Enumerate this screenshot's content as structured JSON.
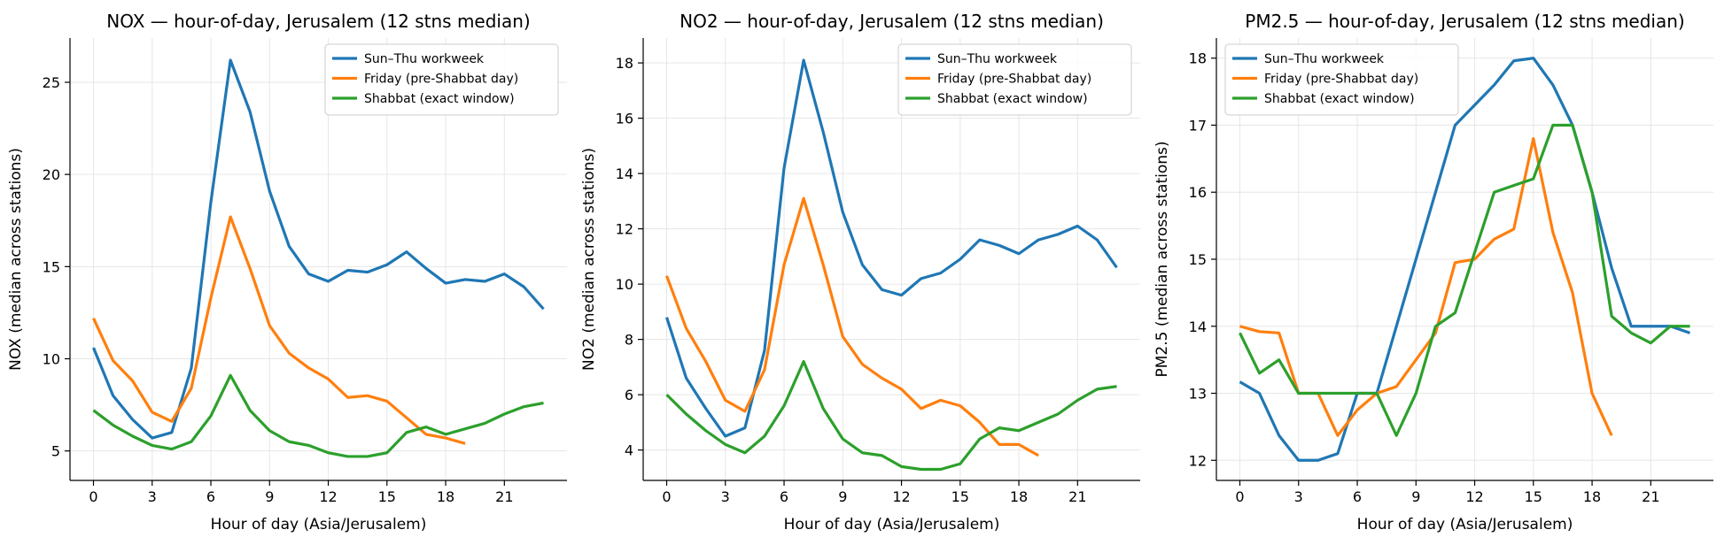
{
  "chart_data": [
    {
      "type": "line",
      "title": "NOX — hour-of-day, Jerusalem (12 stns median)",
      "xlabel": "Hour of day (Asia/Jerusalem)",
      "ylabel": "NOX (median across stations)",
      "xlim": [
        -1.2,
        24.2
      ],
      "ylim": [
        3.4,
        27.4
      ],
      "xticks": [
        0,
        3,
        6,
        9,
        12,
        15,
        18,
        21
      ],
      "yticks": [
        5,
        10,
        15,
        20,
        25
      ],
      "grid": true,
      "legend": "top-right",
      "series": [
        {
          "name": "Sun–Thu workweek",
          "color": "#1f77b4",
          "x": [
            0,
            1,
            2,
            3,
            4,
            5,
            6,
            7,
            8,
            9,
            10,
            11,
            12,
            13,
            14,
            15,
            16,
            17,
            18,
            19,
            20,
            21,
            22,
            23
          ],
          "values": [
            10.6,
            8.0,
            6.7,
            5.7,
            6.0,
            9.5,
            18.5,
            26.2,
            23.4,
            19.1,
            16.1,
            14.6,
            14.2,
            14.8,
            14.7,
            15.1,
            15.8,
            14.9,
            14.1,
            14.3,
            14.2,
            14.6,
            13.9,
            12.7
          ]
        },
        {
          "name": "Friday (pre-Shabbat day)",
          "color": "#ff7f0e",
          "x": [
            0,
            1,
            2,
            3,
            4,
            5,
            6,
            7,
            8,
            9,
            10,
            11,
            12,
            13,
            14,
            15,
            16,
            17,
            18,
            19
          ],
          "values": [
            12.2,
            9.9,
            8.8,
            7.1,
            6.6,
            8.4,
            13.3,
            17.7,
            14.9,
            11.8,
            10.3,
            9.5,
            8.9,
            7.9,
            8.0,
            7.7,
            6.8,
            5.9,
            5.7,
            5.4
          ]
        },
        {
          "name": "Shabbat (exact window)",
          "color": "#2ca02c",
          "x": [
            0,
            1,
            2,
            3,
            4,
            5,
            6,
            7,
            8,
            9,
            10,
            11,
            12,
            13,
            14,
            15,
            16,
            17,
            18,
            19,
            20,
            21,
            22,
            23
          ],
          "values": [
            7.2,
            6.4,
            5.8,
            5.3,
            5.1,
            5.5,
            6.9,
            9.1,
            7.2,
            6.1,
            5.5,
            5.3,
            4.9,
            4.7,
            4.7,
            4.9,
            6.0,
            6.3,
            5.9,
            6.2,
            6.5,
            7.0,
            7.4,
            7.6
          ]
        }
      ]
    },
    {
      "type": "line",
      "title": "NO2 — hour-of-day, Jerusalem (12 stns median)",
      "xlabel": "Hour of day (Asia/Jerusalem)",
      "ylabel": "NO2 (median across stations)",
      "xlim": [
        -1.2,
        24.2
      ],
      "ylim": [
        2.9,
        18.9
      ],
      "xticks": [
        0,
        3,
        6,
        9,
        12,
        15,
        18,
        21
      ],
      "yticks": [
        4,
        6,
        8,
        10,
        12,
        14,
        16,
        18
      ],
      "grid": true,
      "legend": "top-right",
      "series": [
        {
          "name": "Sun–Thu workweek",
          "color": "#1f77b4",
          "x": [
            0,
            1,
            2,
            3,
            4,
            5,
            6,
            7,
            8,
            9,
            10,
            11,
            12,
            13,
            14,
            15,
            16,
            17,
            18,
            19,
            20,
            21,
            22,
            23
          ],
          "values": [
            8.8,
            6.6,
            5.5,
            4.5,
            4.8,
            7.6,
            14.2,
            18.1,
            15.5,
            12.6,
            10.7,
            9.8,
            9.6,
            10.2,
            10.4,
            10.9,
            11.6,
            11.4,
            11.1,
            11.6,
            11.8,
            12.1,
            11.6,
            10.6
          ]
        },
        {
          "name": "Friday (pre-Shabbat day)",
          "color": "#ff7f0e",
          "x": [
            0,
            1,
            2,
            3,
            4,
            5,
            6,
            7,
            8,
            9,
            10,
            11,
            12,
            13,
            14,
            15,
            16,
            17,
            18,
            19
          ],
          "values": [
            10.3,
            8.4,
            7.2,
            5.8,
            5.4,
            6.9,
            10.7,
            13.1,
            10.7,
            8.1,
            7.1,
            6.6,
            6.2,
            5.5,
            5.8,
            5.6,
            5.0,
            4.2,
            4.2,
            3.8
          ]
        },
        {
          "name": "Shabbat (exact window)",
          "color": "#2ca02c",
          "x": [
            0,
            1,
            2,
            3,
            4,
            5,
            6,
            7,
            8,
            9,
            10,
            11,
            12,
            13,
            14,
            15,
            16,
            17,
            18,
            19,
            20,
            21,
            22,
            23
          ],
          "values": [
            6.0,
            5.3,
            4.7,
            4.2,
            3.9,
            4.5,
            5.6,
            7.2,
            5.5,
            4.4,
            3.9,
            3.8,
            3.4,
            3.3,
            3.3,
            3.5,
            4.4,
            4.8,
            4.7,
            5.0,
            5.3,
            5.8,
            6.2,
            6.3
          ]
        }
      ]
    },
    {
      "type": "line",
      "title": "PM2.5 — hour-of-day, Jerusalem (12 stns median)",
      "xlabel": "Hour of day (Asia/Jerusalem)",
      "ylabel": "PM2.5 (median across stations)",
      "xlim": [
        -1.2,
        24.2
      ],
      "ylim": [
        11.7,
        18.3
      ],
      "xticks": [
        0,
        3,
        6,
        9,
        12,
        15,
        18,
        21
      ],
      "yticks": [
        12,
        13,
        14,
        15,
        16,
        17,
        18
      ],
      "grid": true,
      "legend": "top-left",
      "series": [
        {
          "name": "Sun–Thu workweek",
          "color": "#1f77b4",
          "x": [
            0,
            1,
            2,
            3,
            4,
            5,
            6,
            7,
            8,
            9,
            10,
            11,
            12,
            13,
            14,
            15,
            16,
            17,
            18,
            19,
            20,
            21,
            22,
            23
          ],
          "values": [
            13.17,
            13.0,
            12.37,
            12.0,
            12.0,
            12.1,
            13.0,
            13.0,
            14.0,
            15.0,
            16.0,
            17.0,
            17.3,
            17.6,
            17.96,
            18.0,
            17.6,
            17.0,
            16.0,
            14.87,
            14.0,
            14.0,
            14.0,
            13.9
          ]
        },
        {
          "name": "Friday (pre-Shabbat day)",
          "color": "#ff7f0e",
          "x": [
            0,
            1,
            2,
            3,
            4,
            5,
            6,
            7,
            8,
            9,
            10,
            11,
            12,
            13,
            14,
            15,
            16,
            17,
            18,
            19
          ],
          "values": [
            14.0,
            13.92,
            13.9,
            13.0,
            13.0,
            12.37,
            12.75,
            13.0,
            13.1,
            13.5,
            13.9,
            14.95,
            15.0,
            15.3,
            15.45,
            16.8,
            15.4,
            14.5,
            13.0,
            12.37
          ]
        },
        {
          "name": "Shabbat (exact window)",
          "color": "#2ca02c",
          "x": [
            0,
            1,
            2,
            3,
            4,
            5,
            6,
            7,
            8,
            9,
            10,
            11,
            12,
            13,
            14,
            15,
            16,
            17,
            18,
            19,
            20,
            21,
            22,
            23
          ],
          "values": [
            13.9,
            13.3,
            13.5,
            13.0,
            13.0,
            13.0,
            13.0,
            13.0,
            12.37,
            13.0,
            14.0,
            14.2,
            15.1,
            16.0,
            16.1,
            16.2,
            17.0,
            17.0,
            16.0,
            14.15,
            13.9,
            13.75,
            14.0,
            14.0
          ]
        }
      ]
    }
  ]
}
